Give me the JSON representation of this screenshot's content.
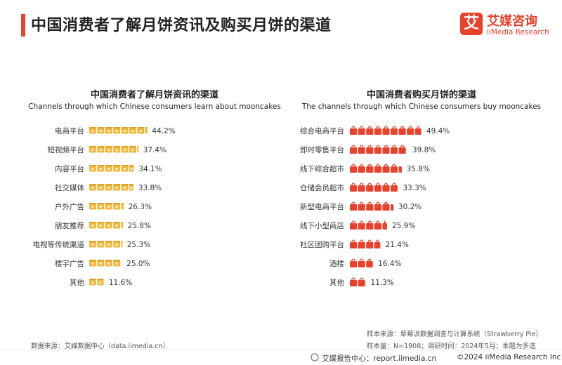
{
  "header": {
    "title": "中国消费者了解月饼资讯及购买月饼的渠道",
    "brand_cn": "艾媒咨询",
    "brand_en": "iiMedia Research",
    "brand_mark": "艾"
  },
  "colors": {
    "accent": "#e8412c",
    "learn_icon": "#f2b840",
    "buy_icon": "#e8412c"
  },
  "chart_data": [
    {
      "type": "bar",
      "title": "中国消费者了解月饼资讯的渠道",
      "subtitle": "Channels through which Chinese consumers learn about mooncakes",
      "icon": "mooncake-box-icon",
      "categories": [
        "电商平台",
        "短视频平台",
        "内容平台",
        "社交媒体",
        "户外广告",
        "朋友推荐",
        "电视等传统渠道",
        "楼宇广告",
        "其他"
      ],
      "values": [
        44.2,
        37.4,
        34.1,
        33.8,
        26.3,
        25.8,
        25.3,
        25.0,
        11.6
      ],
      "labels": [
        "44.2%",
        "37.4%",
        "34.1%",
        "33.8%",
        "26.3%",
        "25.8%",
        "25.3%",
        "25.0%",
        "11.6%"
      ]
    },
    {
      "type": "bar",
      "title": "中国消费者购买月饼的渠道",
      "subtitle": "The channels through which Chinese consumers buy mooncakes",
      "icon": "shopping-bag-icon",
      "categories": [
        "综合电商平台",
        "即时零售平台",
        "线下综合超市",
        "仓储会员超市",
        "新型电商平台",
        "线下小型商店",
        "社区团购平台",
        "酒楼",
        "其他"
      ],
      "values": [
        49.4,
        39.8,
        35.8,
        33.3,
        30.2,
        25.9,
        21.4,
        16.4,
        11.3
      ],
      "labels": [
        "49.4%",
        "39.8%",
        "35.8%",
        "33.3%",
        "30.2%",
        "25.9%",
        "21.4%",
        "16.4%",
        "11.3%"
      ]
    }
  ],
  "footer": {
    "data_source": "数据来源：艾媒数据中心（data.iimedia.cn）",
    "sample_source": "样本来源：草莓派数据调查与计算系统（Strawberry Pie）",
    "sample_info": "样本量：N=1908；调研时间：2024年5月；本题为多选",
    "report_center": "艾媒报告中心：report.iimedia.cn",
    "copyright": "©2024  iiMedia Research Inc"
  }
}
